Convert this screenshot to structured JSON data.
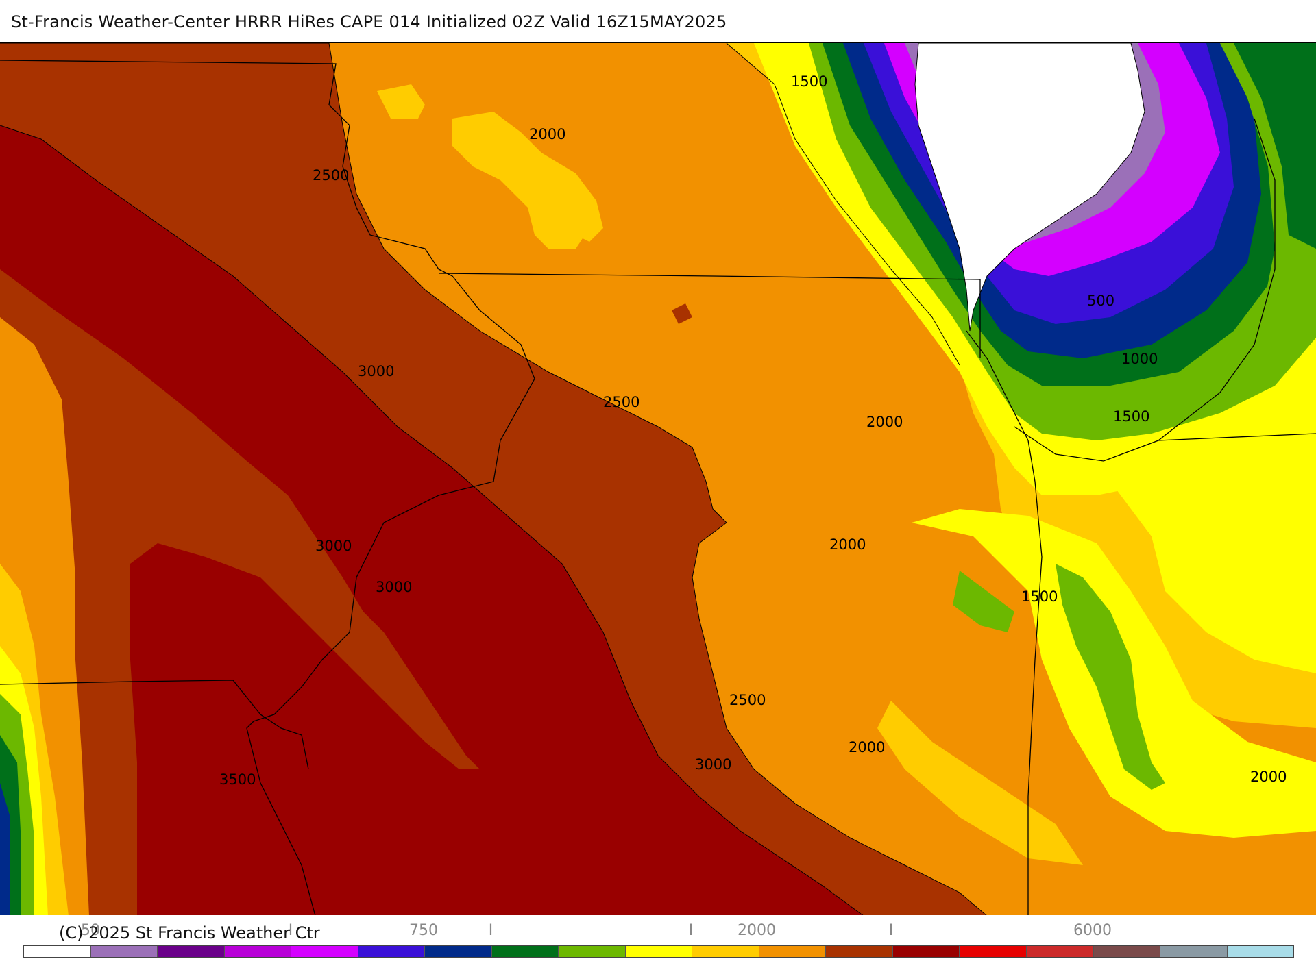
{
  "title": "St-Francis Weather-Center HRRR HiRes CAPE  014 Initialized  02Z Valid 16Z15MAY2025",
  "copyright": "(C) 2025 St Francis Weather Ctr",
  "legend": {
    "tick_labels": [
      "50",
      "I",
      "750",
      "I",
      "I",
      "2000",
      "I",
      "6000"
    ],
    "colors": [
      "#ffffff",
      "#9b70b8",
      "#6a008a",
      "#b800d8",
      "#d400ff",
      "#3a10d8",
      "#002a8a",
      "#00701a",
      "#6cb800",
      "#ffff00",
      "#ffcc00",
      "#f29100",
      "#a83200",
      "#990000",
      "#e60000",
      "#cc2a2a",
      "#7a4a4a",
      "#8a9aa4",
      "#a8dce8"
    ]
  },
  "contour_labels": [
    {
      "text": "1500"
    },
    {
      "text": "2000"
    },
    {
      "text": "2500"
    },
    {
      "text": "3000"
    },
    {
      "text": "2500"
    },
    {
      "text": "2000"
    },
    {
      "text": "500"
    },
    {
      "text": "1000"
    },
    {
      "text": "1500"
    },
    {
      "text": "3000"
    },
    {
      "text": "3000"
    },
    {
      "text": "2000"
    },
    {
      "text": "1500"
    },
    {
      "text": "2500"
    },
    {
      "text": "2000"
    },
    {
      "text": "3000"
    },
    {
      "text": "3500"
    },
    {
      "text": "2000"
    }
  ]
}
